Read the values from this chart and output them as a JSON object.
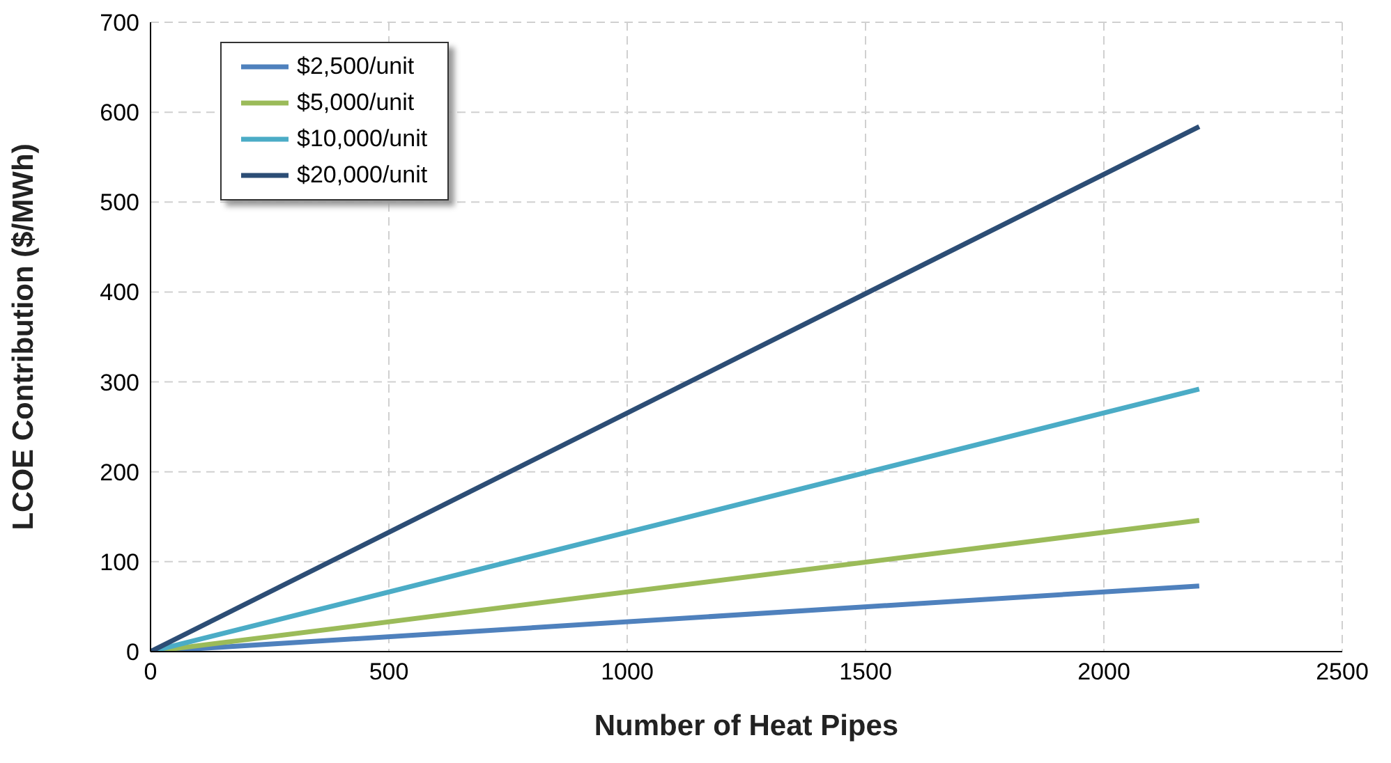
{
  "chart_data": {
    "type": "line",
    "xlabel": "Number of Heat Pipes",
    "ylabel": "LCOE Contribution ($/MWh)",
    "x": [
      0,
      2200
    ],
    "series": [
      {
        "name": "$2,500/unit",
        "color": "#4f81bd",
        "values": [
          0,
          73
        ]
      },
      {
        "name": "$5,000/unit",
        "color": "#9bbb59",
        "values": [
          0,
          146
        ]
      },
      {
        "name": "$10,000/unit",
        "color": "#4bacc6",
        "values": [
          0,
          292
        ]
      },
      {
        "name": "$20,000/unit",
        "color": "#2c4d75",
        "values": [
          0,
          584
        ]
      }
    ],
    "xlim": [
      0,
      2500
    ],
    "xticks": [
      0,
      500,
      1000,
      1500,
      2000,
      2500
    ],
    "ylim": [
      0,
      700
    ],
    "yticks": [
      0,
      100,
      200,
      300,
      400,
      500,
      600,
      700
    ],
    "grid": true,
    "legend": "top left",
    "marker": "none",
    "line_style": "solid"
  }
}
